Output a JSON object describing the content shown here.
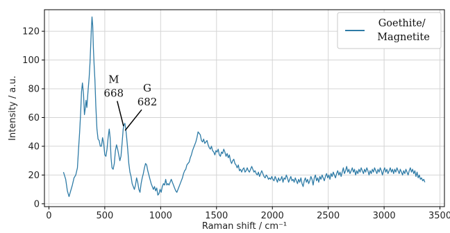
{
  "chart_data": {
    "type": "line",
    "xlabel": "Raman shift  /  cm⁻¹",
    "ylabel": "Intensity  /  a.u.",
    "xlim": [
      -40,
      3540
    ],
    "ylim": [
      -2,
      135
    ],
    "xticks": [
      0,
      500,
      1000,
      1500,
      2000,
      2500,
      3000,
      3500
    ],
    "yticks": [
      0,
      20,
      40,
      60,
      80,
      100,
      120
    ],
    "grid": true,
    "legend_position": "top-right",
    "series": [
      {
        "name": "Goethite/\nMagnetite",
        "color": "#2e7ba6",
        "points": [
          [
            130,
            22
          ],
          [
            150,
            17
          ],
          [
            165,
            9
          ],
          [
            180,
            5
          ],
          [
            195,
            9
          ],
          [
            210,
            13
          ],
          [
            225,
            18
          ],
          [
            240,
            20
          ],
          [
            255,
            25
          ],
          [
            265,
            38
          ],
          [
            275,
            50
          ],
          [
            285,
            65
          ],
          [
            292,
            78
          ],
          [
            300,
            84
          ],
          [
            310,
            76
          ],
          [
            318,
            62
          ],
          [
            325,
            66
          ],
          [
            332,
            72
          ],
          [
            340,
            67
          ],
          [
            350,
            78
          ],
          [
            360,
            88
          ],
          [
            368,
            98
          ],
          [
            374,
            110
          ],
          [
            380,
            122
          ],
          [
            386,
            130
          ],
          [
            392,
            124
          ],
          [
            398,
            108
          ],
          [
            405,
            96
          ],
          [
            412,
            86
          ],
          [
            420,
            68
          ],
          [
            430,
            52
          ],
          [
            440,
            45
          ],
          [
            450,
            44
          ],
          [
            460,
            40
          ],
          [
            470,
            40
          ],
          [
            480,
            46
          ],
          [
            490,
            42
          ],
          [
            500,
            34
          ],
          [
            510,
            33
          ],
          [
            520,
            38
          ],
          [
            530,
            46
          ],
          [
            540,
            52
          ],
          [
            548,
            46
          ],
          [
            556,
            32
          ],
          [
            565,
            25
          ],
          [
            575,
            24
          ],
          [
            585,
            28
          ],
          [
            595,
            37
          ],
          [
            605,
            41
          ],
          [
            615,
            38
          ],
          [
            625,
            34
          ],
          [
            635,
            30
          ],
          [
            645,
            33
          ],
          [
            655,
            42
          ],
          [
            665,
            52
          ],
          [
            672,
            55
          ],
          [
            680,
            56
          ],
          [
            688,
            52
          ],
          [
            696,
            46
          ],
          [
            705,
            38
          ],
          [
            715,
            28
          ],
          [
            725,
            22
          ],
          [
            735,
            19
          ],
          [
            745,
            14
          ],
          [
            755,
            12
          ],
          [
            765,
            10
          ],
          [
            775,
            13
          ],
          [
            785,
            18
          ],
          [
            795,
            15
          ],
          [
            805,
            10
          ],
          [
            815,
            8
          ],
          [
            825,
            14
          ],
          [
            835,
            18
          ],
          [
            845,
            21
          ],
          [
            855,
            25
          ],
          [
            865,
            28
          ],
          [
            875,
            27
          ],
          [
            885,
            23
          ],
          [
            895,
            20
          ],
          [
            905,
            17
          ],
          [
            915,
            14
          ],
          [
            925,
            12
          ],
          [
            935,
            10
          ],
          [
            945,
            12
          ],
          [
            955,
            9
          ],
          [
            965,
            11
          ],
          [
            975,
            6
          ],
          [
            985,
            7
          ],
          [
            995,
            10
          ],
          [
            1005,
            8
          ],
          [
            1015,
            12
          ],
          [
            1025,
            14
          ],
          [
            1035,
            13
          ],
          [
            1045,
            17
          ],
          [
            1055,
            13
          ],
          [
            1065,
            14
          ],
          [
            1075,
            13
          ],
          [
            1085,
            15
          ],
          [
            1095,
            17
          ],
          [
            1105,
            15
          ],
          [
            1115,
            13
          ],
          [
            1125,
            11
          ],
          [
            1135,
            9
          ],
          [
            1145,
            8
          ],
          [
            1155,
            10
          ],
          [
            1165,
            12
          ],
          [
            1175,
            14
          ],
          [
            1185,
            16
          ],
          [
            1195,
            18
          ],
          [
            1205,
            21
          ],
          [
            1215,
            23
          ],
          [
            1225,
            24
          ],
          [
            1235,
            27
          ],
          [
            1245,
            28
          ],
          [
            1255,
            29
          ],
          [
            1265,
            32
          ],
          [
            1275,
            34
          ],
          [
            1285,
            37
          ],
          [
            1295,
            39
          ],
          [
            1305,
            41
          ],
          [
            1315,
            43
          ],
          [
            1325,
            46
          ],
          [
            1335,
            50
          ],
          [
            1345,
            49
          ],
          [
            1355,
            48
          ],
          [
            1365,
            44
          ],
          [
            1375,
            43
          ],
          [
            1385,
            45
          ],
          [
            1395,
            42
          ],
          [
            1405,
            43
          ],
          [
            1415,
            44
          ],
          [
            1425,
            41
          ],
          [
            1435,
            39
          ],
          [
            1445,
            38
          ],
          [
            1455,
            40
          ],
          [
            1465,
            37
          ],
          [
            1475,
            36
          ],
          [
            1485,
            34
          ],
          [
            1495,
            37
          ],
          [
            1505,
            36
          ],
          [
            1515,
            38
          ],
          [
            1525,
            34
          ],
          [
            1535,
            33
          ],
          [
            1545,
            36
          ],
          [
            1555,
            35
          ],
          [
            1565,
            38
          ],
          [
            1575,
            36
          ],
          [
            1585,
            33
          ],
          [
            1595,
            35
          ],
          [
            1605,
            32
          ],
          [
            1615,
            34
          ],
          [
            1625,
            30
          ],
          [
            1635,
            28
          ],
          [
            1645,
            30
          ],
          [
            1655,
            31
          ],
          [
            1665,
            28
          ],
          [
            1675,
            27
          ],
          [
            1685,
            25
          ],
          [
            1695,
            27
          ],
          [
            1705,
            23
          ],
          [
            1715,
            24
          ],
          [
            1725,
            22
          ],
          [
            1735,
            24
          ],
          [
            1745,
            25
          ],
          [
            1755,
            22
          ],
          [
            1765,
            23
          ],
          [
            1775,
            25
          ],
          [
            1785,
            23
          ],
          [
            1795,
            22
          ],
          [
            1805,
            24
          ],
          [
            1815,
            26
          ],
          [
            1825,
            24
          ],
          [
            1835,
            22
          ],
          [
            1845,
            23
          ],
          [
            1855,
            21
          ],
          [
            1865,
            20
          ],
          [
            1875,
            22
          ],
          [
            1885,
            19
          ],
          [
            1895,
            21
          ],
          [
            1905,
            23
          ],
          [
            1915,
            21
          ],
          [
            1925,
            19
          ],
          [
            1935,
            18
          ],
          [
            1945,
            20
          ],
          [
            1955,
            19
          ],
          [
            1965,
            17
          ],
          [
            1975,
            18
          ],
          [
            1985,
            17
          ],
          [
            1995,
            19
          ],
          [
            2005,
            17
          ],
          [
            2015,
            16
          ],
          [
            2025,
            19
          ],
          [
            2035,
            17
          ],
          [
            2045,
            15
          ],
          [
            2055,
            18
          ],
          [
            2065,
            16
          ],
          [
            2075,
            17
          ],
          [
            2085,
            19
          ],
          [
            2095,
            15
          ],
          [
            2105,
            18
          ],
          [
            2115,
            17
          ],
          [
            2125,
            20
          ],
          [
            2135,
            18
          ],
          [
            2145,
            15
          ],
          [
            2155,
            17
          ],
          [
            2165,
            19
          ],
          [
            2175,
            16
          ],
          [
            2185,
            17
          ],
          [
            2195,
            15
          ],
          [
            2205,
            18
          ],
          [
            2215,
            16
          ],
          [
            2225,
            14
          ],
          [
            2235,
            17
          ],
          [
            2245,
            15
          ],
          [
            2255,
            18
          ],
          [
            2265,
            14
          ],
          [
            2275,
            12
          ],
          [
            2285,
            16
          ],
          [
            2295,
            18
          ],
          [
            2305,
            15
          ],
          [
            2315,
            17
          ],
          [
            2325,
            14
          ],
          [
            2335,
            16
          ],
          [
            2345,
            19
          ],
          [
            2355,
            17
          ],
          [
            2365,
            13
          ],
          [
            2375,
            18
          ],
          [
            2385,
            20
          ],
          [
            2395,
            16
          ],
          [
            2405,
            18
          ],
          [
            2415,
            15
          ],
          [
            2425,
            19
          ],
          [
            2435,
            17
          ],
          [
            2445,
            20
          ],
          [
            2455,
            18
          ],
          [
            2465,
            16
          ],
          [
            2475,
            19
          ],
          [
            2485,
            21
          ],
          [
            2495,
            18
          ],
          [
            2505,
            20
          ],
          [
            2515,
            17
          ],
          [
            2525,
            21
          ],
          [
            2535,
            19
          ],
          [
            2545,
            22
          ],
          [
            2555,
            20
          ],
          [
            2565,
            18
          ],
          [
            2575,
            21
          ],
          [
            2585,
            23
          ],
          [
            2595,
            20
          ],
          [
            2605,
            22
          ],
          [
            2615,
            19
          ],
          [
            2625,
            22
          ],
          [
            2635,
            25
          ],
          [
            2645,
            21
          ],
          [
            2655,
            23
          ],
          [
            2665,
            26
          ],
          [
            2675,
            22
          ],
          [
            2685,
            24
          ],
          [
            2695,
            21
          ],
          [
            2705,
            23
          ],
          [
            2715,
            25
          ],
          [
            2725,
            22
          ],
          [
            2735,
            24
          ],
          [
            2745,
            20
          ],
          [
            2755,
            23
          ],
          [
            2765,
            21
          ],
          [
            2775,
            24
          ],
          [
            2785,
            22
          ],
          [
            2795,
            25
          ],
          [
            2805,
            23
          ],
          [
            2815,
            21
          ],
          [
            2825,
            24
          ],
          [
            2835,
            22
          ],
          [
            2845,
            25
          ],
          [
            2855,
            23
          ],
          [
            2865,
            20
          ],
          [
            2875,
            23
          ],
          [
            2885,
            21
          ],
          [
            2895,
            24
          ],
          [
            2905,
            22
          ],
          [
            2915,
            25
          ],
          [
            2925,
            23
          ],
          [
            2935,
            21
          ],
          [
            2945,
            24
          ],
          [
            2955,
            22
          ],
          [
            2965,
            25
          ],
          [
            2975,
            23
          ],
          [
            2985,
            20
          ],
          [
            2995,
            23
          ],
          [
            3005,
            25
          ],
          [
            3015,
            22
          ],
          [
            3025,
            24
          ],
          [
            3035,
            21
          ],
          [
            3045,
            23
          ],
          [
            3055,
            25
          ],
          [
            3065,
            22
          ],
          [
            3075,
            24
          ],
          [
            3085,
            21
          ],
          [
            3095,
            24
          ],
          [
            3105,
            22
          ],
          [
            3115,
            25
          ],
          [
            3125,
            23
          ],
          [
            3135,
            21
          ],
          [
            3145,
            24
          ],
          [
            3155,
            22
          ],
          [
            3165,
            20
          ],
          [
            3175,
            23
          ],
          [
            3185,
            21
          ],
          [
            3195,
            24
          ],
          [
            3205,
            22
          ],
          [
            3215,
            20
          ],
          [
            3225,
            23
          ],
          [
            3235,
            25
          ],
          [
            3245,
            22
          ],
          [
            3255,
            24
          ],
          [
            3265,
            21
          ],
          [
            3275,
            23
          ],
          [
            3285,
            19
          ],
          [
            3295,
            22
          ],
          [
            3305,
            18
          ],
          [
            3315,
            20
          ],
          [
            3325,
            17
          ],
          [
            3335,
            18
          ],
          [
            3345,
            16
          ],
          [
            3355,
            17
          ],
          [
            3365,
            15
          ]
        ]
      }
    ],
    "annotations": [
      {
        "label": "M",
        "value": "668",
        "target": [
          668,
          54
        ],
        "text_at": [
          580,
          84
        ]
      },
      {
        "label": "G",
        "value": "682",
        "target": [
          682,
          51
        ],
        "text_at": [
          880,
          78
        ]
      }
    ]
  }
}
